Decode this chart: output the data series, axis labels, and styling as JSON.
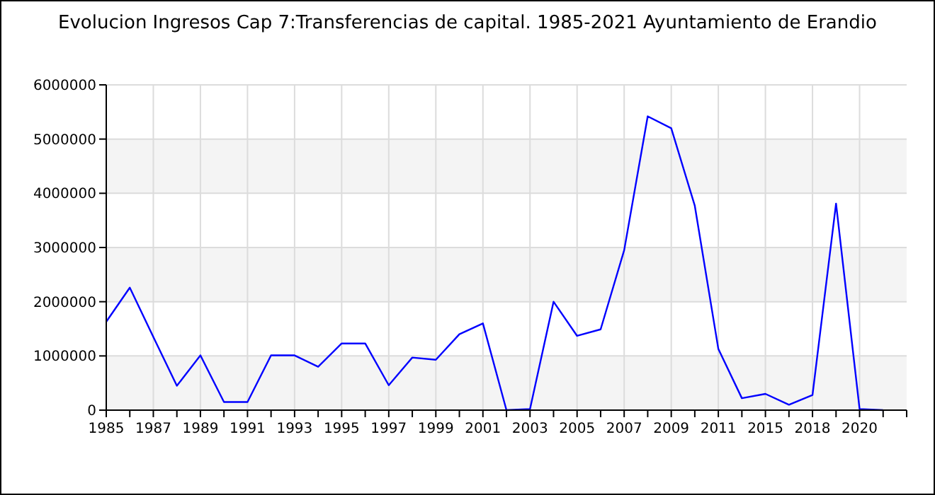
{
  "chart_data": {
    "type": "line",
    "title": "Evolucion Ingresos Cap 7:Transferencias de capital. 1985-2021 Ayuntamiento de Erandio",
    "categories": [
      "1985",
      null,
      "1987",
      null,
      "1989",
      null,
      "1991",
      null,
      "1993",
      null,
      "1995",
      null,
      "1997",
      null,
      "1999",
      null,
      "2001",
      null,
      "2003",
      null,
      "2005",
      null,
      "2007",
      null,
      "2009",
      null,
      "2011",
      null,
      "2015",
      null,
      "2018",
      null,
      "2020",
      null,
      null
    ],
    "series": [
      {
        "color": "#0000ff",
        "values": [
          1630000,
          2260000,
          1350000,
          450000,
          1010000,
          150000,
          150000,
          1010000,
          1010000,
          800000,
          1230000,
          1230000,
          460000,
          970000,
          930000,
          1400000,
          1600000,
          0,
          20000,
          2000000,
          1370000,
          1490000,
          2950000,
          5420000,
          5200000,
          3770000,
          1130000,
          220000,
          300000,
          100000,
          280000,
          3810000,
          20000,
          0,
          null
        ]
      }
    ],
    "ylim": [
      0,
      6000000
    ],
    "yticks": [
      0,
      1000000,
      2000000,
      3000000,
      4000000,
      5000000,
      6000000
    ],
    "grid": true,
    "marker": "none",
    "line_style": "solid"
  }
}
